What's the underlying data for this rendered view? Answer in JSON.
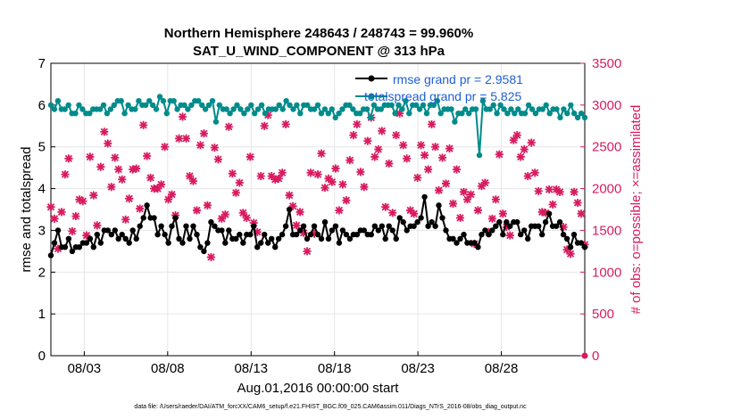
{
  "chart_data": {
    "type": "line",
    "title": "Northern Hemisphere 248643 / 248743 = 99.960%",
    "subtitle": "SAT_U_WIND_COMPONENT @ 313 hPa",
    "xlabel": "Aug.01,2016 00:00:00 start",
    "ylabel": "rmse and totalspread",
    "ylabel_right": "# of obs: o=possible; ×=assimilated",
    "footer": "data file: /Users/raeder/DAI/ATM_forcXX/CAM6_setup/f.e21.FHIST_BGC.f09_025.CAM6assim.011/Diags_NTrS_2016-08/obs_diag_output.nc",
    "xlim": [
      1,
      33
    ],
    "ylim": [
      0,
      7
    ],
    "ylim_right": [
      0,
      3500
    ],
    "x_ticks": [
      3,
      8,
      13,
      18,
      23,
      28
    ],
    "x_tick_labels": [
      "08/03",
      "08/08",
      "08/13",
      "08/18",
      "08/23",
      "08/28"
    ],
    "y_ticks": [
      "0",
      "1",
      "2",
      "3",
      "4",
      "5",
      "6",
      "7"
    ],
    "y_ticks_right": [
      "0",
      "500",
      "1000",
      "1500",
      "2000",
      "2500",
      "3000",
      "3500"
    ],
    "grid": true,
    "legend_position": "top-right",
    "series": [
      {
        "name": "rmse grand pr = 2.9581",
        "color": "#000000",
        "marker": "circle",
        "axis": "left",
        "values": [
          2.4,
          2.7,
          3.0,
          2.6,
          2.6,
          2.8,
          2.5,
          2.6,
          2.6,
          2.7,
          2.7,
          2.8,
          2.6,
          2.9,
          2.7,
          3.0,
          3.0,
          2.9,
          3.0,
          2.8,
          2.9,
          2.8,
          2.7,
          3.0,
          2.8,
          3.1,
          3.3,
          3.6,
          3.3,
          3.3,
          2.9,
          3.1,
          2.9,
          2.7,
          3.1,
          3.3,
          2.8,
          2.7,
          3.1,
          2.8,
          3.1,
          2.9,
          2.6,
          2.5,
          2.7,
          3.2,
          3.1,
          3.0,
          3.0,
          2.7,
          3.0,
          2.8,
          2.8,
          2.9,
          2.7,
          2.9,
          2.9,
          3.1,
          2.6,
          2.7,
          2.9,
          2.7,
          2.8,
          2.6,
          2.8,
          2.9,
          3.1,
          3.5,
          2.9,
          2.9,
          3.0,
          3.1,
          2.8,
          2.9,
          3.1,
          2.9,
          2.8,
          3.2,
          2.8,
          3.0,
          3.1,
          2.7,
          3.0,
          2.9,
          2.8,
          2.9,
          2.9,
          3.0,
          3.0,
          2.9,
          2.9,
          3.1,
          3.0,
          3.1,
          2.8,
          3.1,
          3.0,
          2.8,
          3.3,
          3.2,
          3.0,
          3.1,
          3.1,
          3.2,
          3.3,
          3.8,
          3.1,
          3.2,
          3.1,
          3.6,
          3.3,
          3.0,
          2.8,
          2.8,
          2.7,
          2.8,
          2.9,
          2.7,
          2.7,
          2.7,
          2.6,
          2.9,
          3.0,
          2.9,
          3.0,
          3.1,
          3.2,
          2.9,
          3.2,
          3.1,
          3.2,
          3.2,
          2.9,
          3.0,
          2.8,
          3.1,
          3.1,
          3.1,
          2.9,
          3.2,
          3.4,
          3.1,
          3.1,
          3.2,
          2.9,
          2.8,
          2.6,
          2.9,
          2.7,
          2.7,
          2.6
        ]
      },
      {
        "name": "totalspread grand pr = 5.825",
        "color": "#008b8b",
        "marker": "circle",
        "axis": "left",
        "values": [
          6.0,
          5.9,
          6.1,
          5.9,
          5.9,
          6.0,
          5.8,
          5.8,
          6.0,
          5.9,
          5.8,
          5.8,
          5.9,
          5.9,
          5.9,
          6.0,
          5.8,
          5.9,
          6.0,
          6.1,
          6.1,
          5.8,
          6.0,
          5.9,
          5.9,
          6.1,
          6.0,
          6.0,
          6.1,
          6.0,
          5.9,
          6.2,
          6.1,
          5.8,
          6.1,
          6.1,
          5.9,
          6.0,
          6.0,
          5.9,
          6.0,
          6.1,
          6.1,
          6.0,
          5.9,
          6.0,
          6.1,
          5.6,
          6.0,
          5.9,
          5.9,
          5.8,
          5.9,
          6.0,
          5.9,
          5.8,
          5.9,
          6.0,
          5.8,
          5.9,
          6.0,
          5.8,
          5.9,
          5.9,
          5.9,
          6.0,
          5.9,
          6.1,
          6.0,
          5.9,
          6.0,
          5.8,
          6.0,
          6.0,
          5.9,
          5.9,
          6.0,
          5.8,
          5.9,
          5.8,
          5.9,
          5.7,
          5.8,
          5.9,
          6.0,
          6.0,
          5.9,
          5.8,
          5.8,
          5.9,
          5.9,
          5.7,
          6.0,
          5.9,
          5.9,
          6.0,
          6.0,
          6.0,
          5.8,
          6.0,
          5.9,
          6.1,
          5.8,
          6.0,
          6.0,
          5.9,
          6.0,
          5.8,
          6.0,
          6.0,
          6.1,
          5.8,
          5.9,
          5.9,
          5.9,
          5.6,
          5.8,
          5.8,
          5.9,
          5.8,
          5.9,
          5.9,
          4.8,
          6.1,
          5.9,
          5.9,
          6.0,
          5.8,
          6.0,
          5.9,
          5.8,
          5.9,
          5.8,
          5.9,
          5.8,
          5.8,
          6.0,
          5.9,
          5.8,
          5.9,
          5.9,
          6.0,
          5.8,
          5.9,
          5.9,
          5.7,
          5.9,
          5.8,
          6.0,
          5.8,
          5.7,
          5.8,
          5.7
        ]
      },
      {
        "name": "obs assimilated",
        "color": "#d81b60",
        "marker": "x",
        "axis": "right",
        "values": [
          1780,
          1640,
          1280,
          1720,
          2170,
          2360,
          1490,
          1670,
          1870,
          1850,
          1440,
          2380,
          1920,
          1560,
          2260,
          2680,
          2540,
          2020,
          2370,
          2230,
          2110,
          1630,
          1880,
          2230,
          2240,
          1760,
          2760,
          2390,
          2130,
          2000,
          2000,
          2050,
          2500,
          1870,
          1930,
          1680,
          2600,
          2860,
          2600,
          2150,
          2090,
          1740,
          2520,
          2660,
          1800,
          1180,
          2490,
          2350,
          1640,
          1690,
          2740,
          2180,
          1950,
          2070,
          1710,
          1650,
          2380,
          1590,
          1480,
          2150,
          2750,
          2880,
          2150,
          2110,
          2120,
          2190,
          2770,
          1920,
          1790,
          1560,
          1720,
          1470,
          1250,
          2190,
          1460,
          2170,
          2420,
          2010,
          2120,
          2080,
          2240,
          1740,
          2050,
          1860,
          2340,
          2640,
          2770,
          2200,
          2020,
          2570,
          2850,
          2380,
          2470,
          2690,
          1780,
          2300,
          1710,
          2640,
          2900,
          2520,
          2360,
          1740,
          1700,
          2130,
          2520,
          2400,
          2230,
          2770,
          2500,
          1980,
          2370,
          2060,
          2480,
          1820,
          2230,
          1650,
          1960,
          1870,
          1930,
          1340,
          1740,
          2030,
          2070,
          1480,
          1640,
          1870,
          2410,
          1700,
          1540,
          1440,
          2580,
          2640,
          2380,
          2470,
          2150,
          2550,
          2190,
          1970,
          1720,
          1710,
          1990,
          1810,
          1990,
          1960,
          1540,
          1270,
          1220,
          1960,
          1830,
          1700,
          1330
        ]
      }
    ]
  }
}
